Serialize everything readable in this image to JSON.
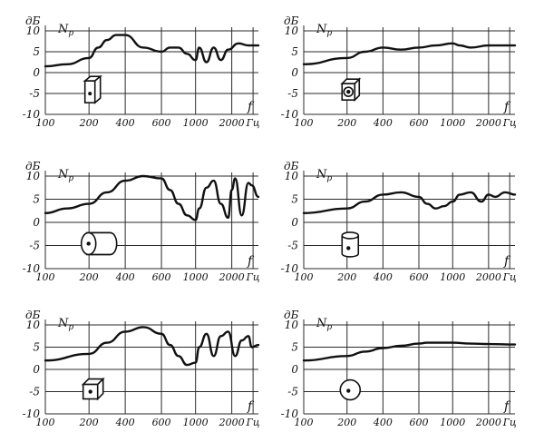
{
  "chart_data": [
    {
      "type": "line",
      "title": "",
      "xlabel": "Гц",
      "ylabel": "дБ",
      "series": [
        {
          "name": "",
          "x": [
            100,
            150,
            200,
            250,
            300,
            350,
            400,
            500,
            600,
            700,
            800,
            900,
            1000,
            1100,
            1300,
            1500,
            1700,
            1900,
            2200,
            2500,
            2800
          ],
          "y": [
            1.5,
            2,
            3.5,
            6,
            7.8,
            9,
            9,
            6,
            5,
            6,
            6,
            4.5,
            3,
            6,
            2.5,
            6,
            3,
            5.5,
            7,
            6.5,
            6.5
          ]
        }
      ],
      "xticks": [
        "100",
        "200",
        "400",
        "600",
        "1000",
        "2000",
        "Гц"
      ],
      "yticks": [
        "10",
        "5",
        "0",
        "-5",
        "-10"
      ],
      "series_label": "Np",
      "axis_var": "f",
      "ylim": [
        -10,
        10
      ],
      "shape": "rect-box"
    },
    {
      "type": "line",
      "title": "",
      "xlabel": "Гц",
      "ylabel": "дБ",
      "series": [
        {
          "name": "",
          "x": [
            100,
            200,
            300,
            400,
            500,
            600,
            800,
            1000,
            1200,
            1500,
            2000,
            2500,
            2800
          ],
          "y": [
            2,
            3.5,
            5,
            6,
            5.5,
            6,
            6.5,
            7,
            6.5,
            6,
            6.5,
            6.5,
            6.5
          ]
        }
      ],
      "xticks": [
        "100",
        "200",
        "400",
        "600",
        "1000",
        "2000",
        "Гц"
      ],
      "yticks": [
        "10",
        "5",
        "0",
        "-5",
        "-10"
      ],
      "series_label": "Np",
      "axis_var": "f",
      "ylim": [
        -10,
        10
      ],
      "shape": "box-speaker"
    },
    {
      "type": "line",
      "title": "",
      "xlabel": "Гц",
      "ylabel": "дБ",
      "series": [
        {
          "name": "",
          "x": [
            100,
            150,
            200,
            300,
            400,
            500,
            600,
            700,
            800,
            900,
            1000,
            1100,
            1300,
            1500,
            1700,
            1900,
            2000,
            2100,
            2300,
            2500,
            2600,
            2800
          ],
          "y": [
            2,
            3,
            4,
            6.5,
            9,
            10,
            9.5,
            7,
            4,
            1.5,
            0.5,
            3,
            7.5,
            9,
            4,
            1,
            7,
            9.5,
            1.5,
            8.5,
            8,
            5.5
          ]
        }
      ],
      "xticks": [
        "100",
        "200",
        "400",
        "600",
        "1000",
        "2000",
        "Гц"
      ],
      "yticks": [
        "10",
        "5",
        "0",
        "-5",
        "-10"
      ],
      "series_label": "Np",
      "axis_var": "f",
      "ylim": [
        -10,
        10
      ],
      "shape": "cylinder-side"
    },
    {
      "type": "line",
      "title": "",
      "xlabel": "Гц",
      "ylabel": "дБ",
      "series": [
        {
          "name": "",
          "x": [
            100,
            200,
            300,
            400,
            500,
            600,
            700,
            800,
            900,
            1000,
            1200,
            1500,
            1800,
            2000,
            2200,
            2500,
            2800
          ],
          "y": [
            2,
            3,
            4.5,
            6,
            6.5,
            5.5,
            4,
            3,
            3.5,
            4.5,
            6,
            6.5,
            4.5,
            6,
            5.5,
            6.5,
            6
          ]
        }
      ],
      "xticks": [
        "100",
        "200",
        "400",
        "600",
        "1000",
        "2000",
        "Гц"
      ],
      "yticks": [
        "10",
        "5",
        "0",
        "-5",
        "-10"
      ],
      "series_label": "Np",
      "axis_var": "f",
      "ylim": [
        -10,
        10
      ],
      "shape": "cylinder-upright"
    },
    {
      "type": "line",
      "title": "",
      "xlabel": "Гц",
      "ylabel": "дБ",
      "series": [
        {
          "name": "",
          "x": [
            100,
            200,
            300,
            400,
            500,
            600,
            700,
            800,
            900,
            1000,
            1100,
            1300,
            1500,
            1700,
            1900,
            2100,
            2300,
            2500,
            2600,
            2800
          ],
          "y": [
            2,
            3.5,
            6,
            8.5,
            9.5,
            8,
            5.5,
            3,
            1,
            1.5,
            5,
            8,
            3,
            7.5,
            8.5,
            3,
            6.5,
            7.5,
            5,
            5.5
          ]
        }
      ],
      "xticks": [
        "100",
        "200",
        "400",
        "600",
        "1000",
        "2000",
        "Гц"
      ],
      "yticks": [
        "10",
        "5",
        "0",
        "-5",
        "-10"
      ],
      "series_label": "Np",
      "axis_var": "f",
      "ylim": [
        -10,
        10
      ],
      "shape": "cube"
    },
    {
      "type": "line",
      "title": "",
      "xlabel": "Гц",
      "ylabel": "дБ",
      "series": [
        {
          "name": "",
          "x": [
            100,
            200,
            300,
            400,
            500,
            600,
            700,
            800,
            1000,
            1500,
            2000,
            2800
          ],
          "y": [
            2,
            3,
            4,
            4.8,
            5.3,
            5.8,
            6,
            6,
            6,
            5.8,
            5.7,
            5.6
          ]
        }
      ],
      "xticks": [
        "100",
        "200",
        "400",
        "600",
        "1000",
        "2000",
        "Гц"
      ],
      "yticks": [
        "10",
        "5",
        "0",
        "-5",
        "-10"
      ],
      "series_label": "Np",
      "axis_var": "f",
      "ylim": [
        -10,
        10
      ],
      "shape": "sphere"
    }
  ]
}
